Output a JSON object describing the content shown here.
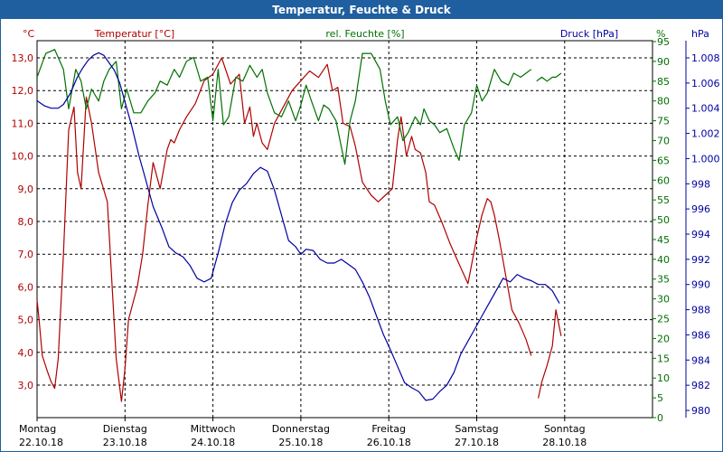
{
  "window": {
    "title": "Temperatur, Feuchte & Druck"
  },
  "colors": {
    "temperature": "#b00000",
    "humidity": "#007000",
    "pressure": "#0000a0",
    "grid": "#000000"
  },
  "chart_data": {
    "type": "line",
    "title": "Temperatur, Feuchte & Druck",
    "grid": true,
    "x_ticks": [
      {
        "day": "Montag",
        "date": "22.10.18"
      },
      {
        "day": "Dienstag",
        "date": "23.10.18"
      },
      {
        "day": "Mittwoch",
        "date": "24.10.18"
      },
      {
        "day": "Donnerstag",
        "date": "25.10.18"
      },
      {
        "day": "Freitag",
        "date": "26.10.18"
      },
      {
        "day": "Samstag",
        "date": "27.10.18"
      },
      {
        "day": "Sonntag",
        "date": "28.10.18"
      }
    ],
    "axes": {
      "temperature": {
        "unit": "°C",
        "label": "Temperatur [°C]",
        "ylim": [
          2.0,
          13.5
        ],
        "ticks": [
          "13,0",
          "12,0",
          "11,0",
          "10,0",
          "9,0",
          "8,0",
          "7,0",
          "6,0",
          "5,0",
          "4,0",
          "3,0"
        ]
      },
      "humidity": {
        "unit": "%",
        "label": "rel. Feuchte [%]",
        "ylim": [
          0,
          95
        ],
        "ticks": [
          "95",
          "90",
          "85",
          "80",
          "75",
          "70",
          "65",
          "60",
          "55",
          "50",
          "45",
          "40",
          "35",
          "30",
          "25",
          "20",
          "15",
          "10",
          "5",
          "0"
        ]
      },
      "pressure": {
        "unit": "hPa",
        "label": "Druck [hPa]",
        "ylim": [
          980,
          1009
        ],
        "ticks": [
          "1.008",
          "1.006",
          "1.004",
          "1.002",
          "1.000",
          "998",
          "996",
          "994",
          "992",
          "990",
          "988",
          "986",
          "984",
          "982",
          "980"
        ]
      }
    },
    "series": [
      {
        "name": "Temperatur [°C]",
        "axis": "temperature",
        "x": [
          0,
          0.02,
          0.06,
          0.12,
          0.16,
          0.2,
          0.24,
          0.3,
          0.36,
          0.42,
          0.46,
          0.5,
          0.56,
          0.62,
          0.7,
          0.8,
          0.9,
          0.96,
          1.0,
          1.04,
          1.1,
          1.14,
          1.2,
          1.26,
          1.32,
          1.4,
          1.48,
          1.52,
          1.56,
          1.62,
          1.7,
          1.8,
          1.9,
          2.0,
          2.1,
          2.2,
          2.3,
          2.36,
          2.42,
          2.46,
          2.5,
          2.56,
          2.62,
          2.7,
          2.8,
          2.9,
          3.0,
          3.1,
          3.2,
          3.3,
          3.36,
          3.42,
          3.48,
          3.56,
          3.62,
          3.7,
          3.8,
          3.88,
          3.96,
          4.04,
          4.1,
          4.14,
          4.2,
          4.26,
          4.3,
          4.36,
          4.42,
          4.46,
          4.52,
          4.6,
          4.7,
          4.8,
          4.9,
          5.0,
          5.06,
          5.12,
          5.16,
          5.2,
          5.26,
          5.32,
          5.4,
          5.48,
          5.56,
          5.62,
          5.66,
          5.7,
          5.74,
          5.8,
          5.86,
          5.9,
          5.96
        ],
        "y": [
          5.6,
          5.1,
          3.9,
          3.4,
          3.1,
          2.9,
          3.8,
          7.0,
          10.8,
          11.5,
          9.5,
          9.0,
          11.8,
          11.0,
          9.5,
          8.6,
          3.8,
          2.5,
          3.5,
          5.0,
          5.6,
          6.0,
          7.0,
          8.5,
          9.8,
          9.0,
          10.2,
          10.5,
          10.4,
          10.8,
          11.2,
          11.6,
          12.3,
          12.5,
          13.0,
          12.2,
          12.5,
          11.0,
          11.5,
          10.6,
          11.0,
          10.4,
          10.2,
          11.0,
          11.5,
          12.0,
          12.3,
          12.6,
          12.4,
          12.8,
          12.0,
          12.1,
          11.0,
          10.9,
          10.3,
          9.2,
          8.8,
          8.6,
          8.8,
          9.0,
          10.5,
          11.2,
          10.0,
          10.6,
          10.2,
          10.1,
          9.5,
          8.6,
          8.5,
          8.0,
          7.3,
          6.7,
          6.1,
          7.5,
          8.2,
          8.7,
          8.6,
          8.2,
          7.4,
          6.5,
          5.3,
          4.9,
          4.4,
          3.9,
          null,
          2.6,
          3.1,
          3.6,
          4.2,
          5.3,
          4.5
        ],
        "note": "Data from day positions; 0 = Montag 22.10.18 ... 6 = Sonntag 28.10.18"
      },
      {
        "name": "rel. Feuchte [%]",
        "axis": "humidity",
        "x": [
          0,
          0.1,
          0.2,
          0.3,
          0.36,
          0.44,
          0.5,
          0.56,
          0.62,
          0.7,
          0.76,
          0.82,
          0.9,
          0.96,
          1.02,
          1.1,
          1.18,
          1.26,
          1.34,
          1.4,
          1.48,
          1.56,
          1.62,
          1.7,
          1.78,
          1.86,
          1.94,
          2.0,
          2.06,
          2.12,
          2.18,
          2.26,
          2.34,
          2.42,
          2.5,
          2.56,
          2.62,
          2.7,
          2.78,
          2.86,
          2.94,
          3.0,
          3.06,
          3.12,
          3.2,
          3.26,
          3.32,
          3.4,
          3.5,
          3.56,
          3.62,
          3.7,
          3.8,
          3.9,
          3.96,
          4.02,
          4.1,
          4.16,
          4.22,
          4.3,
          4.36,
          4.4,
          4.46,
          4.52,
          4.58,
          4.66,
          4.74,
          4.8,
          4.86,
          4.94,
          5.0,
          5.06,
          5.12,
          5.2,
          5.28,
          5.36,
          5.42,
          5.5,
          5.56,
          5.62,
          5.68,
          5.74,
          5.8,
          5.86,
          5.9,
          5.96
        ],
        "y": [
          86,
          92,
          93,
          88,
          78,
          88,
          85,
          78,
          83,
          80,
          85,
          88,
          90,
          78,
          83,
          77,
          77,
          80,
          82,
          85,
          84,
          88,
          86,
          90,
          91,
          85,
          86,
          75,
          88,
          74,
          76,
          86,
          85,
          89,
          86,
          88,
          82,
          77,
          76,
          80,
          75,
          79,
          84,
          80,
          75,
          79,
          78,
          75,
          64,
          75,
          80,
          92,
          92,
          88,
          80,
          74,
          76,
          70,
          72,
          76,
          74,
          78,
          75,
          74,
          72,
          73,
          68,
          65,
          74,
          77,
          84,
          80,
          82,
          88,
          85,
          84,
          87,
          86,
          87,
          88,
          85,
          86,
          85,
          86,
          86,
          87
        ],
        "gap_after_x": 5.62
      },
      {
        "name": "Druck [hPa]",
        "axis": "pressure",
        "x": [
          0,
          0.08,
          0.16,
          0.24,
          0.3,
          0.38,
          0.46,
          0.52,
          0.58,
          0.64,
          0.7,
          0.76,
          0.82,
          0.88,
          0.94,
          1.0,
          1.08,
          1.16,
          1.24,
          1.32,
          1.42,
          1.5,
          1.58,
          1.66,
          1.74,
          1.82,
          1.9,
          1.98,
          2.06,
          2.14,
          2.22,
          2.3,
          2.38,
          2.46,
          2.54,
          2.62,
          2.7,
          2.78,
          2.86,
          2.94,
          3.0,
          3.06,
          3.14,
          3.22,
          3.3,
          3.38,
          3.46,
          3.54,
          3.62,
          3.7,
          3.78,
          3.86,
          3.94,
          4.02,
          4.1,
          4.18,
          4.26,
          4.34,
          4.42,
          4.5,
          4.58,
          4.66,
          4.74,
          4.82,
          4.9,
          4.98,
          5.06,
          5.14,
          5.22,
          5.3,
          5.38,
          5.46,
          5.54,
          5.62,
          5.7,
          5.78,
          5.86,
          5.94
        ],
        "y": [
          1004.6,
          1004.2,
          1004.0,
          1004.0,
          1004.3,
          1005.2,
          1006.5,
          1007.2,
          1007.8,
          1008.2,
          1008.4,
          1008.2,
          1007.6,
          1007.0,
          1006.0,
          1004.5,
          1002.5,
          1000.2,
          998.2,
          996.2,
          994.5,
          993.0,
          992.5,
          992.2,
          991.5,
          990.5,
          990.2,
          990.5,
          992.5,
          994.8,
          996.5,
          997.5,
          998.0,
          998.8,
          999.3,
          999.0,
          997.5,
          995.5,
          993.5,
          993.0,
          992.4,
          992.8,
          992.7,
          992.0,
          991.7,
          991.7,
          992.0,
          991.6,
          991.2,
          990.2,
          989.0,
          987.5,
          986.0,
          984.8,
          983.5,
          982.2,
          981.8,
          981.5,
          980.8,
          980.9,
          981.5,
          982.0,
          983.0,
          984.5,
          985.5,
          986.5,
          987.5,
          988.5,
          989.5,
          990.5,
          990.2,
          990.8,
          990.5,
          990.3,
          990.0,
          990.0,
          989.5,
          988.5
        ]
      }
    ]
  }
}
